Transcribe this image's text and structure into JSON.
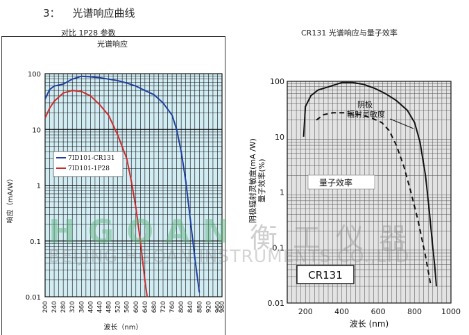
{
  "heading": {
    "number": "3：",
    "text": "光谱响应曲线"
  },
  "colors": {
    "left_bg": "#d2ecf3",
    "blue": "#1f3fa0",
    "red": "#cc2b2b",
    "right_bg": "#e3e3e3"
  },
  "chart_data": [
    {
      "type": "line",
      "title": "对比 1P28 参数",
      "subtitle": "光谱响应",
      "xlabel": "波长（nm）",
      "ylabel": "响应（mA/W）",
      "xlim": [
        200,
        980
      ],
      "ylim": [
        0.01,
        100
      ],
      "yscale": "log",
      "grid": true,
      "legend_position": "center-left",
      "x_ticks": [
        "200",
        "240",
        "280",
        "320",
        "360",
        "400",
        "440",
        "480",
        "520",
        "560",
        "600",
        "640",
        "680",
        "720",
        "760",
        "800",
        "840",
        "880",
        "920",
        "960",
        "980"
      ],
      "y_ticks": [
        "0.01",
        "0.1",
        "1",
        "10",
        "100"
      ],
      "series": [
        {
          "name": "7ID101-CR131",
          "color": "#1f3fa0",
          "points": [
            [
              200,
              35
            ],
            [
              220,
              52
            ],
            [
              240,
              60
            ],
            [
              280,
              65
            ],
            [
              320,
              80
            ],
            [
              360,
              90
            ],
            [
              400,
              88
            ],
            [
              440,
              85
            ],
            [
              480,
              80
            ],
            [
              520,
              75
            ],
            [
              560,
              68
            ],
            [
              600,
              60
            ],
            [
              640,
              50
            ],
            [
              680,
              42
            ],
            [
              720,
              30
            ],
            [
              760,
              18
            ],
            [
              780,
              10
            ],
            [
              800,
              4
            ],
            [
              820,
              1.2
            ],
            [
              840,
              0.25
            ],
            [
              860,
              0.05
            ],
            [
              880,
              0.012
            ]
          ]
        },
        {
          "name": "7ID101-1P28",
          "color": "#cc2b2b",
          "points": [
            [
              200,
              16
            ],
            [
              220,
              24
            ],
            [
              240,
              32
            ],
            [
              280,
              45
            ],
            [
              320,
              50
            ],
            [
              360,
              48
            ],
            [
              400,
              40
            ],
            [
              440,
              28
            ],
            [
              480,
              18
            ],
            [
              520,
              8
            ],
            [
              560,
              3
            ],
            [
              580,
              1.2
            ],
            [
              600,
              0.4
            ],
            [
              620,
              0.1
            ],
            [
              640,
              0.02
            ],
            [
              650,
              0.01
            ]
          ]
        }
      ]
    },
    {
      "type": "line",
      "title": "CR131 光谱响应与量子效率",
      "xlabel": "波长 (nm)",
      "ylabel": "阴极辐射灵敏度(mA /W)\n量子效率(%)",
      "xlim": [
        100,
        1000
      ],
      "ylim": [
        0.01,
        100
      ],
      "yscale": "log",
      "grid": true,
      "x_ticks": [
        "200",
        "400",
        "600",
        "800",
        "1000"
      ],
      "y_ticks": [
        "0.01",
        "0.1",
        "1",
        "10",
        "100"
      ],
      "label_box": "CR131",
      "annotations": [
        "阴极\n辐射灵敏度",
        "量子效率"
      ],
      "series": [
        {
          "name": "阴极辐射灵敏度",
          "style": "solid",
          "points": [
            [
              190,
              10
            ],
            [
              200,
              35
            ],
            [
              230,
              55
            ],
            [
              270,
              70
            ],
            [
              330,
              80
            ],
            [
              400,
              95
            ],
            [
              460,
              95
            ],
            [
              520,
              88
            ],
            [
              580,
              75
            ],
            [
              640,
              60
            ],
            [
              700,
              45
            ],
            [
              760,
              30
            ],
            [
              800,
              18
            ],
            [
              830,
              8
            ],
            [
              860,
              2
            ],
            [
              880,
              0.5
            ],
            [
              900,
              0.1
            ],
            [
              910,
              0.05
            ],
            [
              920,
              0.02
            ]
          ]
        },
        {
          "name": "量子效率",
          "style": "dashed",
          "points": [
            [
              260,
              20
            ],
            [
              300,
              25
            ],
            [
              350,
              27
            ],
            [
              420,
              27
            ],
            [
              500,
              25
            ],
            [
              560,
              22
            ],
            [
              620,
              18
            ],
            [
              660,
              13
            ],
            [
              700,
              7
            ],
            [
              740,
              3
            ],
            [
              780,
              1
            ],
            [
              820,
              0.3
            ],
            [
              860,
              0.07
            ],
            [
              890,
              0.02
            ]
          ]
        }
      ]
    }
  ],
  "watermark": {
    "logo_en": "HGOAN",
    "logo_cn": "衡工仪器",
    "subtitle": "BEIJING HGOAN INSTRUMENTS CO.,LTD"
  }
}
